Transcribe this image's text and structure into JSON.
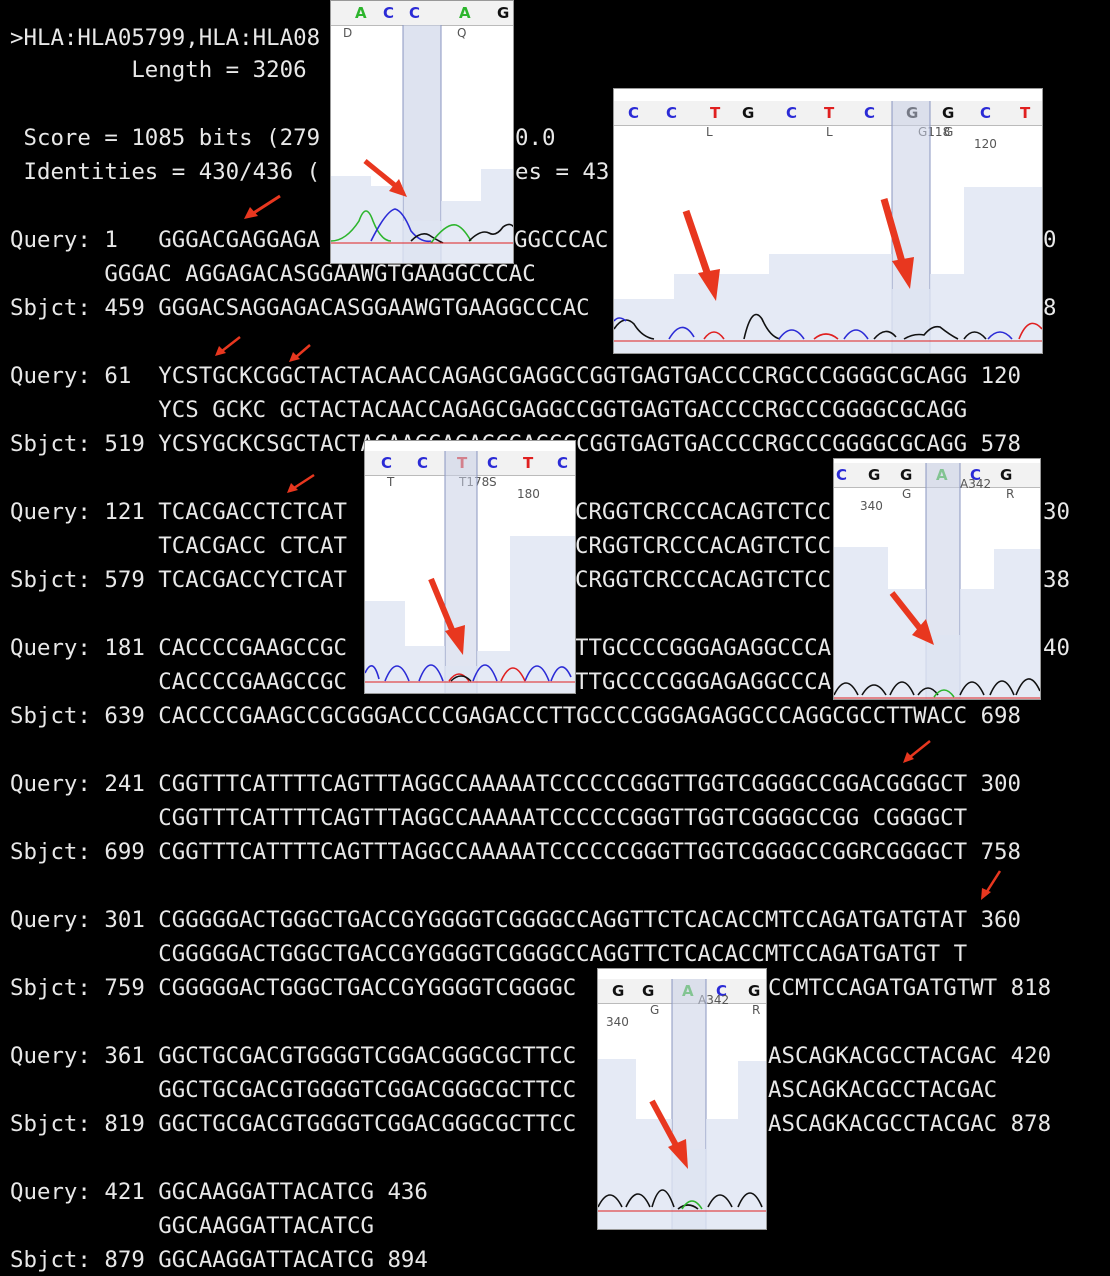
{
  "header": {
    "hit_line": ">HLA:HLA05799,HLA:HLA08",
    "length_line": "         Length = 3206",
    "score_line": " Score = 1085 bits (279",
    "score_tail": "0.0",
    "identities_line": " Identities = 430/436 (",
    "identities_tail": "es = 43"
  },
  "alignment": [
    {
      "q": "Query: 1   GGGACGAGGAGA",
      "q_tail": "GGCCCAC",
      "q_end": "0",
      "m": "       GGGAC AGGAGACASGGAAWGTGAAGGCCCAC",
      "s": "Sbjct: 459 GGGACSAGGAGACASGGAAWGTGAAGGCCCAC",
      "s_end": "8"
    },
    {
      "q": "Query: 61  YCSTGCKCGGCTACTACAACCAGAGCGAGGCCGGTGAGTGACCCCRGCCCGGGGCGCAGG 120",
      "m": "           YCS GCKC GCTACTACAACCAGAGCGAGGCCGGTGAGTGACCCCRGCCCGGGGCGCAGG",
      "s": "Sbjct: 519 YCSYGCKCSGCTACTACAACCAGAGCGAGGCCGGTGAGTGACCCCRGCCCGGGGCGCAGG 578"
    },
    {
      "q": "Query: 121 TCACGACCTCTCAT",
      "q_mid": "CRGGTCRCCCACAGTCTCC",
      "q_end": "30",
      "m": "           TCACGACC CTCAT",
      "m_mid": "CRGGTCRCCCACAGTCTCC",
      "s": "Sbjct: 579 TCACGACCYCTCAT",
      "s_mid": "CRGGTCRCCCACAGTCTCC",
      "s_end": "38"
    },
    {
      "q": "Query: 181 CACCCCGAAGCCGC",
      "q_mid": "TTGCCCCGGGAGAGGCCCA",
      "q_end": "40",
      "m": "           CACCCCGAAGCCGC",
      "m_mid": "TTGCCCCGGGAGAGGCCCA",
      "s": "Sbjct: 639 CACCCCGAAGCCGCGGGACCCCGAGACCCTTGCCCCGGGAGAGGCCCAGGCGCCTTWACC 698"
    },
    {
      "q": "Query: 241 CGGTTTCATTTTCAGTTTAGGCCAAAAATCCCCCCGGGTTGGTCGGGGCCGGACGGGGCT 300",
      "m": "           CGGTTTCATTTTCAGTTTAGGCCAAAAATCCCCCCGGGTTGGTCGGGGCCGG CGGGGCT",
      "s": "Sbjct: 699 CGGTTTCATTTTCAGTTTAGGCCAAAAATCCCCCCGGGTTGGTCGGGGCCGGRCGGGGCT 758"
    },
    {
      "q": "Query: 301 CGGGGGACTGGGCTGACCGYGGGGTCGGGGCCAGGTTCTCACACCMTCCAGATGATGTAT 360",
      "m": "           CGGGGGACTGGGCTGACCGYGGGGTCGGGGCCAGGTTCTCACACCMTCCAGATGATGT T",
      "s": "Sbjct: 759 CGGGGGACTGGGCTGACCGYGGGGTCGGGGC",
      "s_tail": "CCMTCCAGATGATGTWT 818"
    },
    {
      "q": "Query: 361 GGCTGCGACGTGGGGTCGGACGGGCGCTTCC",
      "q_tail": "ASCAGKACGCCTACGAC 420",
      "m": "           GGCTGCGACGTGGGGTCGGACGGGCGCTTCC",
      "m_tail": "ASCAGKACGCCTACGAC",
      "s": "Sbjct: 819 GGCTGCGACGTGGGGTCGGACGGGCGCTTCC",
      "s_tail": "ASCAGKACGCCTACGAC 878"
    },
    {
      "q": "Query: 421 GGCAAGGATTACATCG 436",
      "m": "           GGCAAGGATTACATCG",
      "s": "Sbjct: 879 GGCAAGGATTACATCG 894"
    }
  ],
  "chromatograms": [
    {
      "id": "c1",
      "bases": [
        "A",
        "C",
        "C",
        "A",
        "G"
      ],
      "labels": [
        "D",
        "Q"
      ]
    },
    {
      "id": "c2",
      "bases": [
        "C",
        "C",
        "T",
        "G",
        "C",
        "T",
        "C",
        "G",
        "G",
        "C",
        "T"
      ],
      "labels": [
        "L",
        "L",
        "G118",
        "G",
        "120"
      ]
    },
    {
      "id": "c3",
      "bases": [
        "C",
        "C",
        "T",
        "C",
        "T",
        "C"
      ],
      "labels": [
        "T",
        "T178",
        "S",
        "180"
      ]
    },
    {
      "id": "c4",
      "bases": [
        "C",
        "G",
        "G",
        "A",
        "C",
        "G"
      ],
      "labels": [
        "340",
        "G",
        "A342",
        "R"
      ]
    },
    {
      "id": "c5",
      "bases": [
        "G",
        "G",
        "A",
        "C",
        "G"
      ],
      "labels": [
        "340",
        "G",
        "A342",
        "R"
      ]
    }
  ],
  "colors": {
    "A": "#2db52d",
    "C": "#2b2bd6",
    "G": "#111111",
    "T": "#e02020",
    "arrow": "#e8371f",
    "highlight": "#c8d0e6"
  }
}
